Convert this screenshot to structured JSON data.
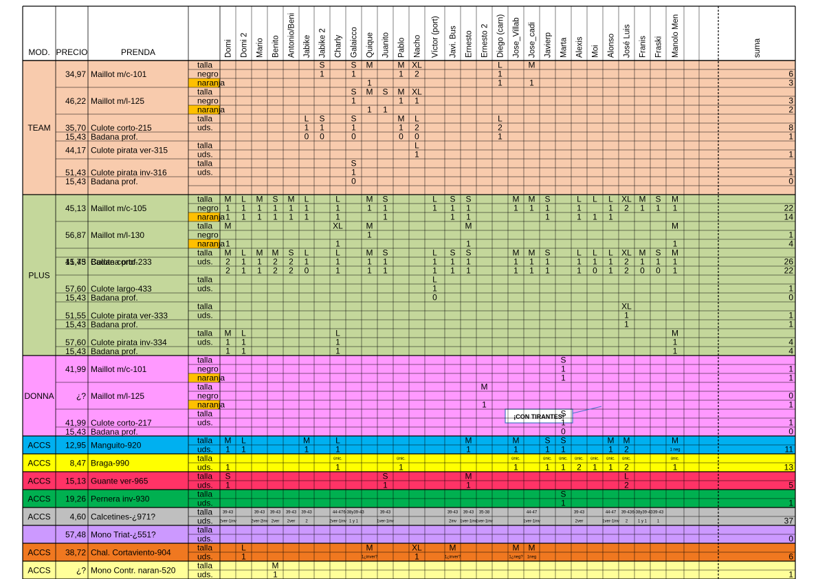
{
  "header": {
    "mod": "MOD.",
    "precio": "PRECIO",
    "prenda": "PRENDA",
    "suma": "suma"
  },
  "persons": [
    "Domi",
    "Domi 2",
    "Mario",
    "Benito",
    "Antonio/Beni",
    "Jabike",
    "Jabike 2",
    "Charly",
    "Galaicco",
    "Quique",
    "Juanito",
    "Pablo",
    "Nacho",
    "Víctor (port)",
    "Javi. Bus",
    "Ernesto",
    "Ernesto 2",
    "Diego (carn)",
    "Jose_Villab",
    "Jose_cadi",
    "Javierp",
    "Marta",
    "Alexis",
    "Moi",
    "Alonso",
    "José Luis",
    "Franis",
    "Fraski",
    "Manolo Men",
    "",
    ""
  ],
  "colors": {
    "team": "#f8cbad",
    "plus": "#c4d79b",
    "donna": "#ff99ff",
    "manguito": "#00b0f0",
    "braga": "#ffff00",
    "guante": "#ff3366",
    "pernera": "#00b050",
    "calcetines": "#bfbfbf",
    "mono": "#cc99ff",
    "chal": "#f07820",
    "contr": "#ffff99",
    "naranja": "#ffc000"
  },
  "groups": [
    {
      "label": "TEAM",
      "color": "team",
      "start": 0,
      "end": 14
    },
    {
      "label": "PLUS",
      "color": "plus",
      "start": 15,
      "end": 32
    },
    {
      "label": "DONNA",
      "color": "donna",
      "start": 33,
      "end": 41
    },
    {
      "label": "ACCS",
      "color": "manguito",
      "start": 42,
      "end": 43
    },
    {
      "label": "ACCS",
      "color": "braga",
      "start": 44,
      "end": 45
    },
    {
      "label": "ACCS",
      "color": "guante",
      "start": 46,
      "end": 47
    },
    {
      "label": "ACCS",
      "color": "pernera",
      "start": 48,
      "end": 49
    },
    {
      "label": "ACCS",
      "color": "calcetines",
      "start": 50,
      "end": 51
    },
    {
      "label": "",
      "color": "mono",
      "start": 52,
      "end": 53
    },
    {
      "label": "ACCS",
      "color": "chal",
      "start": 54,
      "end": 55
    },
    {
      "label": "ACCS",
      "color": "contr",
      "start": 56,
      "end": 57
    }
  ],
  "products": [
    {
      "start": 0,
      "end": 2,
      "price": "34,97",
      "name": "Maillot m/c-101"
    },
    {
      "start": 3,
      "end": 5,
      "price": "46,22",
      "name": "Maillot m/l-125"
    },
    {
      "start": 6,
      "end": 8,
      "price": "35,70",
      "name": "Culote corto-215"
    },
    {
      "start": 8,
      "end": 8,
      "price": "15,43",
      "name": "Badana prof."
    },
    {
      "start": 9,
      "end": 10,
      "price": "44,17",
      "name": "Culote pirata ver-315"
    },
    {
      "start": 11,
      "end": 13,
      "price": "51,43",
      "name": "Culote pirata inv-316"
    },
    {
      "start": 13,
      "end": 13,
      "price": "15,43",
      "name": "Badana prof."
    },
    {
      "start": 15,
      "end": 17,
      "price": "45,13",
      "name": "Maillot m/c-105"
    },
    {
      "start": 18,
      "end": 20,
      "price": "56,87",
      "name": "Maillot m/l-130"
    },
    {
      "start": 21,
      "end": 23,
      "price": "41,75",
      "name": "Culote corto-233"
    },
    {
      "start": 22,
      "end": 22,
      "price": "15,43",
      "name": "Badana prof."
    },
    {
      "start": 24,
      "end": 26,
      "price": "57,60",
      "name": "Culote largo-433"
    },
    {
      "start": 26,
      "end": 26,
      "price": "15,43",
      "name": "Badana prof."
    },
    {
      "start": 27,
      "end": 29,
      "price": "51,55",
      "name": "Culote pirata ver-333"
    },
    {
      "start": 29,
      "end": 29,
      "price": "15,43",
      "name": "Badana prof."
    },
    {
      "start": 30,
      "end": 32,
      "price": "57,60",
      "name": "Culote pirata inv-334"
    },
    {
      "start": 32,
      "end": 32,
      "price": "15,43",
      "name": "Badana prof."
    },
    {
      "start": 33,
      "end": 35,
      "price": "41,99",
      "name": "Maillot m/c-101"
    },
    {
      "start": 36,
      "end": 38,
      "price": "¿?",
      "name": "Maillot m/l-125"
    },
    {
      "start": 39,
      "end": 41,
      "price": "41,99",
      "name": "Culote corto-217"
    },
    {
      "start": 41,
      "end": 41,
      "price": "15,43",
      "name": "Badana prof."
    },
    {
      "start": 42,
      "end": 43,
      "price": "12,95",
      "name": "Manguito-920"
    },
    {
      "start": 44,
      "end": 45,
      "price": "8,47",
      "name": "Braga-990"
    },
    {
      "start": 46,
      "end": 47,
      "price": "15,13",
      "name": "Guante ver-965"
    },
    {
      "start": 48,
      "end": 49,
      "price": "19,26",
      "name": "Pernera inv-930"
    },
    {
      "start": 50,
      "end": 51,
      "price": "4,60",
      "name": "Calcetines-¿971?"
    },
    {
      "start": 52,
      "end": 53,
      "price": "57,48",
      "name": "Mono Triat-¿551?"
    },
    {
      "start": 54,
      "end": 55,
      "price": "38,72",
      "name": "Chal. Cortaviento-904"
    },
    {
      "start": 56,
      "end": 57,
      "price": "¿?",
      "name": "Mono Contr. naran-520"
    }
  ],
  "rows": [
    {
      "label": "talla",
      "cells": {
        "6": "S",
        "8": "S",
        "9": "M",
        "11": "M",
        "12": "XL",
        "17": "L",
        "19": "M"
      }
    },
    {
      "label": "negro",
      "cells": {
        "6": "1",
        "8": "1",
        "11": "1",
        "12": "2",
        "17": "1"
      },
      "sum": "6"
    },
    {
      "label": "naranja",
      "orange": true,
      "cells": {
        "9": "1",
        "17": "1",
        "19": "1"
      },
      "sum": "3"
    },
    {
      "label": "talla",
      "cells": {
        "8": "S",
        "9": "M",
        "10": "S",
        "11": "M",
        "12": "XL"
      }
    },
    {
      "label": "negro",
      "cells": {
        "8": "1",
        "11": "1",
        "12": "1"
      },
      "sum": "3"
    },
    {
      "label": "naranja",
      "orange": true,
      "cells": {
        "9": "1",
        "10": "1"
      },
      "sum": "2"
    },
    {
      "label": "talla",
      "cells": {
        "5": "L",
        "6": "S",
        "8": "S",
        "11": "M",
        "12": "L",
        "17": "L"
      }
    },
    {
      "label": "uds.",
      "cells": {
        "5": "1",
        "6": "1",
        "8": "1",
        "11": "1",
        "12": "2",
        "17": "2"
      },
      "sum": "8"
    },
    {
      "label": "",
      "cells": {
        "5": "0",
        "6": "0",
        "8": "0",
        "11": "0",
        "12": "0",
        "17": "1"
      },
      "sum": "1"
    },
    {
      "label": "talla",
      "cells": {
        "12": "L"
      }
    },
    {
      "label": "uds.",
      "cells": {
        "12": "1"
      },
      "sum": "1"
    },
    {
      "label": "talla",
      "cells": {
        "8": "S"
      }
    },
    {
      "label": "uds.",
      "cells": {
        "8": "1"
      },
      "sum": "1"
    },
    {
      "label": "",
      "cells": {
        "8": "0"
      },
      "sum": "0"
    },
    {
      "label": "",
      "cells": {}
    },
    {
      "label": "talla",
      "cells": {
        "0": "M",
        "1": "L",
        "2": "M",
        "3": "S",
        "4": "M",
        "5": "L",
        "7": "L",
        "9": "M",
        "10": "S",
        "13": "L",
        "14": "S",
        "15": "S",
        "18": "M",
        "19": "M",
        "20": "S",
        "22": "L",
        "23": "L",
        "24": "L",
        "25": "XL",
        "26": "M",
        "27": "S",
        "28": "M"
      }
    },
    {
      "label": "negro",
      "cells": {
        "0": "1",
        "1": "1",
        "2": "1",
        "3": "1",
        "4": "1",
        "5": "1",
        "7": "1",
        "9": "1",
        "10": "1",
        "13": "1",
        "14": "1",
        "15": "1",
        "18": "1",
        "19": "1",
        "20": "1",
        "22": "1",
        "24": "1",
        "25": "2",
        "26": "1",
        "27": "1",
        "28": "1"
      },
      "sum": "22"
    },
    {
      "label": "naranja",
      "orange": true,
      "cells": {
        "0": "1",
        "1": "1",
        "2": "1",
        "3": "1",
        "4": "1",
        "5": "1",
        "7": "1",
        "10": "1",
        "14": "1",
        "15": "1",
        "20": "1",
        "22": "1",
        "23": "1",
        "24": "1"
      },
      "sum": "14"
    },
    {
      "label": "talla",
      "cells": {
        "0": "M",
        "7": "XL",
        "9": "M",
        "15": "M",
        "28": "M"
      }
    },
    {
      "label": "negro",
      "cells": {
        "9": "1"
      },
      "sum": "1"
    },
    {
      "label": "naranja",
      "orange": true,
      "cells": {
        "0": "1",
        "7": "1",
        "15": "1",
        "28": "1"
      },
      "sum": "4"
    },
    {
      "label": "talla",
      "cells": {
        "0": "M",
        "1": "L",
        "2": "M",
        "3": "M",
        "4": "S",
        "5": "L",
        "7": "L",
        "9": "M",
        "10": "S",
        "13": "L",
        "14": "S",
        "15": "S",
        "18": "M",
        "19": "M",
        "20": "S",
        "22": "L",
        "23": "L",
        "24": "L",
        "25": "XL",
        "26": "M",
        "27": "S",
        "28": "M"
      }
    },
    {
      "label": "uds.",
      "cells": {
        "0": "2",
        "1": "1",
        "2": "1",
        "3": "2",
        "4": "2",
        "5": "1",
        "7": "1",
        "9": "1",
        "10": "1",
        "13": "1",
        "14": "1",
        "15": "1",
        "18": "1",
        "19": "1",
        "20": "1",
        "22": "1",
        "23": "1",
        "24": "1",
        "25": "2",
        "26": "1",
        "27": "1",
        "28": "1"
      },
      "sum": "26"
    },
    {
      "label": "",
      "cells": {
        "0": "2",
        "1": "1",
        "2": "1",
        "3": "2",
        "4": "2",
        "5": "0",
        "7": "1",
        "9": "1",
        "10": "1",
        "13": "1",
        "14": "1",
        "15": "1",
        "18": "1",
        "19": "1",
        "20": "1",
        "22": "1",
        "23": "0",
        "24": "1",
        "25": "2",
        "26": "0",
        "27": "0",
        "28": "1"
      },
      "sum": "22"
    },
    {
      "label": "talla",
      "cells": {
        "13": "L"
      }
    },
    {
      "label": "uds.",
      "cells": {
        "13": "1"
      },
      "sum": "1"
    },
    {
      "label": "",
      "cells": {
        "13": "0"
      },
      "sum": "0"
    },
    {
      "label": "talla",
      "cells": {
        "25": "XL"
      }
    },
    {
      "label": "uds.",
      "cells": {
        "25": "1"
      },
      "sum": "1"
    },
    {
      "label": "",
      "cells": {
        "25": "1"
      },
      "sum": "1"
    },
    {
      "label": "talla",
      "cells": {
        "0": "M",
        "1": "L",
        "7": "L",
        "28": "M"
      }
    },
    {
      "label": "uds.",
      "cells": {
        "0": "1",
        "1": "1",
        "7": "1",
        "28": "1"
      },
      "sum": "4"
    },
    {
      "label": "",
      "cells": {
        "0": "1",
        "1": "1",
        "7": "1",
        "28": "1"
      },
      "sum": "4"
    },
    {
      "label": "talla",
      "cells": {
        "21": "S"
      }
    },
    {
      "label": "negro",
      "cells": {
        "21": "1"
      },
      "sum": "1"
    },
    {
      "label": "naranja",
      "orange": true,
      "cells": {
        "21": "1"
      },
      "sum": "1"
    },
    {
      "label": "talla",
      "cells": {
        "16": "M"
      }
    },
    {
      "label": "negro",
      "cells": {},
      "sum": "0"
    },
    {
      "label": "naranja",
      "orange": true,
      "cells": {
        "16": "1"
      },
      "sum": "1"
    },
    {
      "label": "talla",
      "cells": {
        "21": "S"
      }
    },
    {
      "label": "uds.",
      "cells": {
        "21": "1"
      },
      "sum": "1"
    },
    {
      "label": "",
      "cells": {
        "21": "0"
      },
      "sum": "0"
    },
    {
      "label": "talla",
      "cells": {
        "0": "M",
        "1": "L",
        "5": "M",
        "7": "L",
        "15": "M",
        "18": "M",
        "20": "S",
        "21": "S",
        "24": "M",
        "25": "M",
        "28": "M"
      }
    },
    {
      "label": "uds.",
      "cells": {
        "0": "1",
        "1": "1",
        "5": "1",
        "7": "1",
        "15": "1",
        "18": "1",
        "20": "1",
        "21": "1",
        "24": "1",
        "25": "2",
        "28": "1 neg"
      },
      "sum": "11"
    },
    {
      "label": "talla",
      "cells": {
        "7": "únic.",
        "11": "únic.",
        "18": "únic.",
        "20": "únic.",
        "21": "únic.",
        "22": "únic.",
        "23": "únic.",
        "24": "únic.",
        "25": "únic.",
        "28": "únic."
      }
    },
    {
      "label": "uds.",
      "cells": {
        "0": "1",
        "7": "1",
        "11": "1",
        "18": "1",
        "20": "1",
        "21": "1",
        "22": "2",
        "23": "1",
        "24": "1",
        "25": "2",
        "28": "1"
      },
      "sum": "13"
    },
    {
      "label": "talla",
      "cells": {
        "0": "S",
        "10": "S",
        "15": "M",
        "25": "L"
      }
    },
    {
      "label": "uds.",
      "cells": {
        "0": "1",
        "10": "1",
        "15": "1",
        "25": "2"
      },
      "sum": "5"
    },
    {
      "label": "talla",
      "cells": {
        "21": "S"
      }
    },
    {
      "label": "uds.",
      "cells": {
        "21": "1"
      },
      "sum": "1"
    },
    {
      "label": "talla",
      "small": true,
      "cells": {
        "0": "39-43",
        "2": "39-43",
        "3": "39-43",
        "4": "39-43",
        "5": "39-43",
        "7": "44-47",
        "8": "6-38y39-43",
        "10": "39-43",
        "14": "39-43",
        "15": "39-43",
        "16": "35-38",
        "19": "44-47",
        "22": "39-43",
        "24": "44-47",
        "25": "39-43",
        "26": "6-38y39-43",
        "27": "39-43"
      }
    },
    {
      "label": "uds.",
      "small": true,
      "cells": {
        "0": "2ver-1inv",
        "2": "2ver-2inv",
        "3": "2ver",
        "4": "2ver",
        "5": "2",
        "7": "2ver-1inv",
        "8": "1 y 1",
        "10": "1ver-1inv",
        "14": "2inv",
        "15": "1ver-1inv",
        "16": "1ver-1inv",
        "19": "1ver-1inv",
        "22": "2ver",
        "24": "1ver-1inv",
        "25": "2",
        "26": "1 y 1",
        "27": "1"
      },
      "sum": "37",
      "sumRed": true
    },
    {
      "label": "talla",
      "cells": {}
    },
    {
      "label": "uds.",
      "cells": {},
      "sum": "0"
    },
    {
      "label": "talla",
      "cells": {
        "1": "L",
        "9": "M",
        "12": "XL",
        "14": "M",
        "18": "M",
        "19": "M"
      }
    },
    {
      "label": "uds.",
      "cells": {
        "1": "1",
        "12": "1"
      },
      "smallCells": {
        "9": "1¿inver?",
        "14": "1¿inver?",
        "18": "1¿neg?",
        "19": "1neg"
      },
      "sum": "6"
    },
    {
      "label": "talla",
      "cells": {
        "3": "M"
      }
    },
    {
      "label": "uds.",
      "cells": {
        "3": "1"
      },
      "sum": "1"
    }
  ],
  "callout": "¡CON TIRANTES!"
}
